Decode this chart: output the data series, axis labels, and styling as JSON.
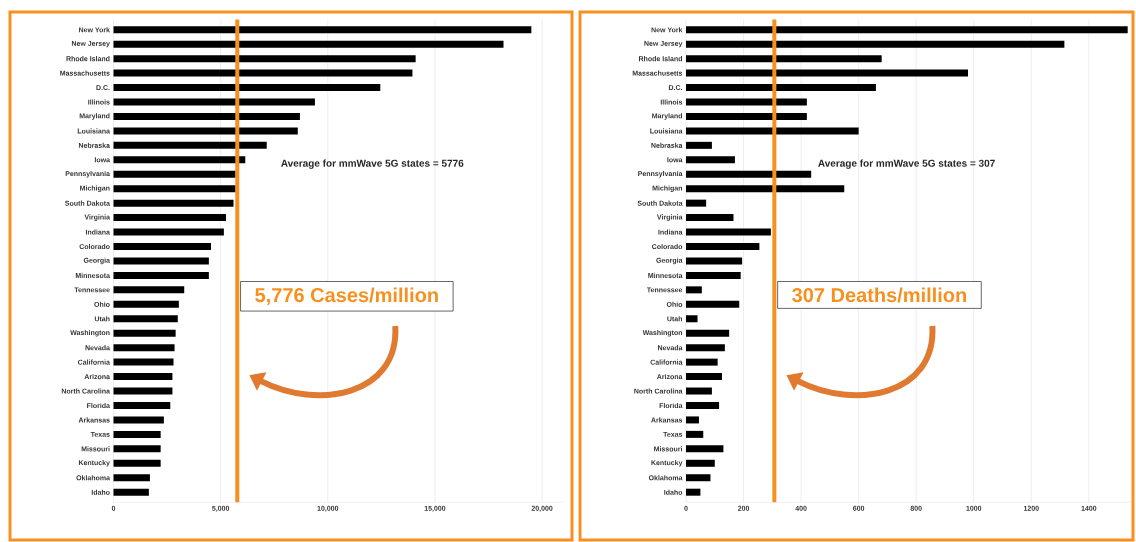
{
  "chart_data": [
    {
      "type": "bar",
      "orientation": "horizontal",
      "color": "#000000",
      "grid": "x",
      "categories": [
        "New York",
        "New Jersey",
        "Rhode Island",
        "Massachusetts",
        "D.C.",
        "Illinois",
        "Maryland",
        "Louisiana",
        "Nebraska",
        "Iowa",
        "Pennsylvania",
        "Michigan",
        "South Dakota",
        "Virginia",
        "Indiana",
        "Colorado",
        "Georgia",
        "Minnesota",
        "Tennessee",
        "Ohio",
        "Utah",
        "Washington",
        "Nevada",
        "California",
        "Arizona",
        "North Carolina",
        "Florida",
        "Arkansas",
        "Texas",
        "Missouri",
        "Kentucky",
        "Oklahoma",
        "Idaho"
      ],
      "values": [
        19500,
        18200,
        14100,
        13950,
        12450,
        9400,
        8700,
        8600,
        7150,
        6150,
        5700,
        5700,
        5600,
        5250,
        5150,
        4550,
        4450,
        4450,
        3300,
        3050,
        3000,
        2900,
        2850,
        2800,
        2750,
        2750,
        2650,
        2350,
        2200,
        2200,
        2200,
        1700,
        1650
      ],
      "xlim": [
        0,
        21000
      ],
      "xticks": [
        0,
        {
          "value": 5000,
          "label": "5,000"
        },
        {
          "value": 10000,
          "label": "10,000"
        },
        {
          "value": 15000,
          "label": "15,000"
        },
        {
          "value": 20000,
          "label": "20,000"
        }
      ],
      "ref_lines": [
        {
          "axis": "x",
          "value": 5776,
          "label": "5,776 Cases/million",
          "color": "#f7901e"
        }
      ],
      "annotations": [
        "Average for mmWave 5G states = 5776"
      ]
    },
    {
      "type": "bar",
      "orientation": "horizontal",
      "color": "#000000",
      "grid": "x",
      "categories": [
        "New York",
        "New Jersey",
        "Rhode Island",
        "Massachusetts",
        "D.C.",
        "Illinois",
        "Maryland",
        "Louisiana",
        "Nebraska",
        "Iowa",
        "Pennsylvania",
        "Michigan",
        "South Dakota",
        "Virginia",
        "Indiana",
        "Colorado",
        "Georgia",
        "Minnesota",
        "Tennessee",
        "Ohio",
        "Utah",
        "Washington",
        "Nevada",
        "California",
        "Arizona",
        "North Carolina",
        "Florida",
        "Arkansas",
        "Texas",
        "Missouri",
        "Kentucky",
        "Oklahoma",
        "Idaho"
      ],
      "values": [
        1535,
        1315,
        680,
        980,
        660,
        420,
        420,
        600,
        90,
        170,
        435,
        550,
        70,
        165,
        295,
        255,
        195,
        190,
        55,
        185,
        40,
        150,
        135,
        110,
        125,
        90,
        115,
        45,
        60,
        130,
        100,
        85,
        50
      ],
      "xlim": [
        0,
        1550
      ],
      "xticks": [
        0,
        200,
        400,
        600,
        800,
        1000,
        1200,
        1400
      ],
      "ref_lines": [
        {
          "axis": "x",
          "value": 307,
          "label": "307 Deaths/million",
          "color": "#f7901e"
        }
      ],
      "annotations": [
        "Average for mmWave 5G states = 307"
      ]
    }
  ]
}
